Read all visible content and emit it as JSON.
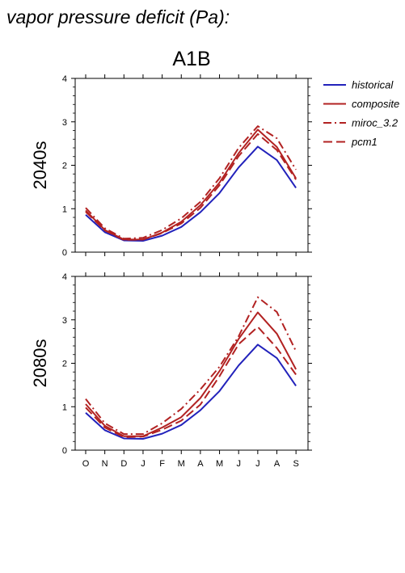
{
  "figure": {
    "title": "vapor pressure deficit (Pa):"
  },
  "chart_data": {
    "type": "line",
    "title": "A1B",
    "categories": [
      "O",
      "N",
      "D",
      "J",
      "F",
      "M",
      "A",
      "M",
      "J",
      "J",
      "A",
      "S"
    ],
    "ylim": [
      0,
      4
    ],
    "yticks": [
      0,
      1,
      2,
      3,
      4
    ],
    "grid": false,
    "legend_position": "top-right, outside plot area",
    "series_styles": [
      {
        "name": "historical",
        "color": "#2222bb",
        "dash": "solid"
      },
      {
        "name": "composite",
        "color": "#b22222",
        "dash": "solid"
      },
      {
        "name": "miroc_3.2",
        "color": "#b22222",
        "dash": "dashdot"
      },
      {
        "name": "pcm1",
        "color": "#b22222",
        "dash": "dashed"
      }
    ],
    "panels": [
      {
        "label": "2040s",
        "series": [
          {
            "name": "historical",
            "values": [
              0.86,
              0.46,
              0.27,
              0.26,
              0.38,
              0.58,
              0.92,
              1.36,
              1.95,
              2.43,
              2.12,
              1.48
            ]
          },
          {
            "name": "composite",
            "values": [
              0.96,
              0.51,
              0.29,
              0.29,
              0.45,
              0.7,
              1.08,
              1.6,
              2.28,
              2.82,
              2.42,
              1.7
            ]
          },
          {
            "name": "miroc_3.2",
            "values": [
              1.02,
              0.55,
              0.31,
              0.33,
              0.51,
              0.78,
              1.16,
              1.7,
              2.4,
              2.9,
              2.62,
              1.9
            ]
          },
          {
            "name": "pcm1",
            "values": [
              0.93,
              0.5,
              0.28,
              0.29,
              0.44,
              0.66,
              1.02,
              1.54,
              2.21,
              2.72,
              2.35,
              1.67
            ]
          }
        ]
      },
      {
        "label": "2080s",
        "series": [
          {
            "name": "historical",
            "values": [
              0.86,
              0.46,
              0.27,
              0.26,
              0.38,
              0.58,
              0.92,
              1.36,
              1.95,
              2.43,
              2.12,
              1.48
            ]
          },
          {
            "name": "composite",
            "values": [
              1.06,
              0.56,
              0.32,
              0.32,
              0.52,
              0.76,
              1.2,
              1.82,
              2.56,
              3.17,
              2.68,
              1.86
            ]
          },
          {
            "name": "miroc_3.2",
            "values": [
              1.18,
              0.62,
              0.37,
              0.37,
              0.62,
              0.95,
              1.4,
              1.92,
              2.62,
              3.52,
              3.18,
              2.28
            ]
          },
          {
            "name": "pcm1",
            "values": [
              0.98,
              0.52,
              0.3,
              0.31,
              0.47,
              0.68,
              1.05,
              1.7,
              2.44,
              2.84,
              2.35,
              1.74
            ]
          }
        ]
      }
    ]
  }
}
